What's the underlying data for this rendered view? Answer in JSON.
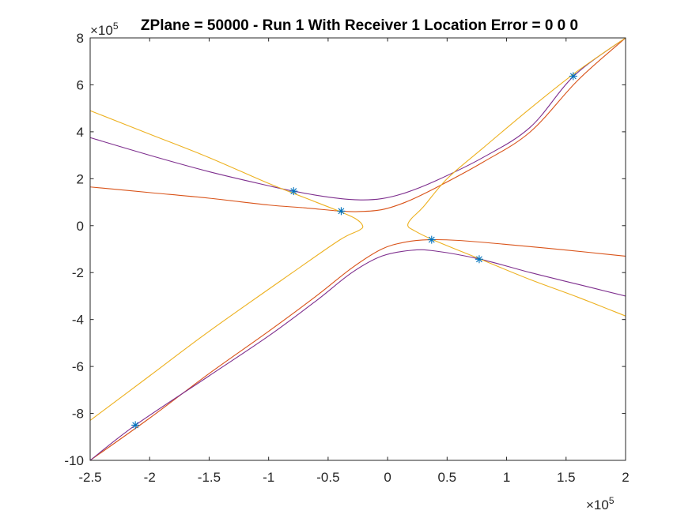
{
  "chart_data": {
    "type": "line",
    "title": "ZPlane = 50000 - Run 1 With Receiver 1 Location Error = 0  0  0",
    "xlabel": "",
    "ylabel": "",
    "xlim": [
      -250000,
      200000
    ],
    "ylim": [
      -1000000,
      800000
    ],
    "x_ticks": [
      -250000,
      -200000,
      -150000,
      -100000,
      -50000,
      0,
      50000,
      100000,
      150000,
      200000
    ],
    "x_tick_labels": [
      "-2.5",
      "-2",
      "-1.5",
      "-1",
      "-0.5",
      "0",
      "0.5",
      "1",
      "1.5",
      "2"
    ],
    "y_ticks": [
      -1000000,
      -800000,
      -600000,
      -400000,
      -200000,
      0,
      200000,
      400000,
      600000,
      800000
    ],
    "y_tick_labels": [
      "-10",
      "-8",
      "-6",
      "-4",
      "-2",
      "0",
      "2",
      "4",
      "6",
      "8"
    ],
    "x_exponent": {
      "base": "×10",
      "power": "5"
    },
    "y_exponent": {
      "base": "×10",
      "power": "5"
    },
    "grid": false,
    "colors": {
      "orange": "#D95319",
      "yellow": "#EDB120",
      "purple": "#7E2F8E",
      "marker": "#0072BD"
    },
    "series": [
      {
        "color": "orange",
        "values": [
          [
            -250000,
            165000
          ],
          [
            -200000,
            141000
          ],
          [
            -150000,
            117000
          ],
          [
            -100000,
            88000
          ],
          [
            -70000,
            76000
          ],
          [
            -40000,
            62000
          ],
          [
            -25000,
            60000
          ],
          [
            -5000,
            68000
          ],
          [
            15000,
            100000
          ],
          [
            40000,
            160000
          ],
          [
            80000,
            270000
          ],
          [
            120000,
            400000
          ],
          [
            160000,
            620000
          ],
          [
            200000,
            800000
          ]
        ]
      },
      {
        "color": "orange",
        "values": [
          [
            -250000,
            -1000000
          ],
          [
            -200000,
            -820000
          ],
          [
            -150000,
            -630000
          ],
          [
            -100000,
            -450000
          ],
          [
            -60000,
            -300000
          ],
          [
            -30000,
            -180000
          ],
          [
            -5000,
            -100000
          ],
          [
            15000,
            -70000
          ],
          [
            35000,
            -60000
          ],
          [
            60000,
            -63000
          ],
          [
            100000,
            -80000
          ],
          [
            150000,
            -104000
          ],
          [
            200000,
            -130000
          ]
        ]
      },
      {
        "color": "purple",
        "values": [
          [
            -250000,
            375000
          ],
          [
            -200000,
            300000
          ],
          [
            -150000,
            230000
          ],
          [
            -100000,
            170000
          ],
          [
            -79000,
            147000
          ],
          [
            -50000,
            122000
          ],
          [
            -25000,
            110000
          ],
          [
            -5000,
            115000
          ],
          [
            15000,
            140000
          ],
          [
            40000,
            190000
          ],
          [
            80000,
            290000
          ],
          [
            120000,
            420000
          ],
          [
            157000,
            640000
          ],
          [
            200000,
            800000
          ]
        ]
      },
      {
        "color": "purple",
        "values": [
          [
            -250000,
            -1000000
          ],
          [
            -212000,
            -850000
          ],
          [
            -150000,
            -640000
          ],
          [
            -100000,
            -470000
          ],
          [
            -60000,
            -320000
          ],
          [
            -30000,
            -200000
          ],
          [
            -5000,
            -130000
          ],
          [
            20000,
            -105000
          ],
          [
            40000,
            -108000
          ],
          [
            78000,
            -143000
          ],
          [
            120000,
            -200000
          ],
          [
            160000,
            -250000
          ],
          [
            200000,
            -300000
          ]
        ]
      },
      {
        "color": "yellow",
        "values": [
          [
            -250000,
            490000
          ],
          [
            -200000,
            390000
          ],
          [
            -150000,
            290000
          ],
          [
            -100000,
            180000
          ],
          [
            -60000,
            100000
          ],
          [
            -40000,
            60000
          ],
          [
            -27000,
            30000
          ],
          [
            -21000,
            0
          ],
          [
            -24000,
            -20000
          ],
          [
            -40000,
            -60000
          ],
          [
            -80000,
            -200000
          ],
          [
            -150000,
            -450000
          ],
          [
            -200000,
            -640000
          ],
          [
            -250000,
            -830000
          ]
        ]
      },
      {
        "color": "yellow",
        "values": [
          [
            200000,
            800000
          ],
          [
            160000,
            660000
          ],
          [
            120000,
            500000
          ],
          [
            80000,
            330000
          ],
          [
            50000,
            200000
          ],
          [
            30000,
            80000
          ],
          [
            20000,
            30000
          ],
          [
            17000,
            0
          ],
          [
            22000,
            -20000
          ],
          [
            38000,
            -60000
          ],
          [
            78000,
            -143000
          ],
          [
            120000,
            -230000
          ],
          [
            160000,
            -305000
          ],
          [
            200000,
            -385000
          ]
        ]
      }
    ],
    "markers": {
      "symbol": "*",
      "color": "marker",
      "points": [
        [
          -212000,
          -850000
        ],
        [
          -79000,
          147000
        ],
        [
          -39000,
          62000
        ],
        [
          37000,
          -60000
        ],
        [
          77000,
          -143000
        ],
        [
          156000,
          637000
        ]
      ]
    }
  }
}
